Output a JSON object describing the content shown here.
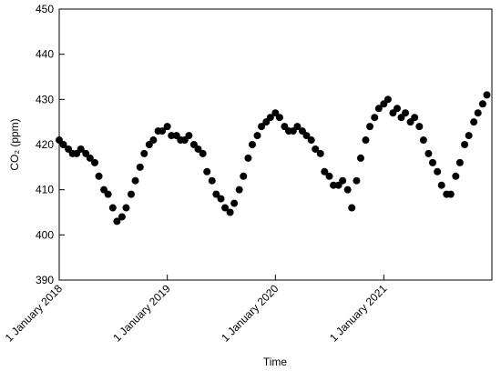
{
  "chart_data": {
    "type": "scatter",
    "x_label": "Time",
    "y_label": "CO₂ (ppm)",
    "xlim": [
      "2018-01-01",
      "2022-01-01"
    ],
    "xticks": [
      {
        "value": "2018-01-01",
        "label": "1 January 2018"
      },
      {
        "value": "2019-01-01",
        "label": "1 January 2019"
      },
      {
        "value": "2020-01-01",
        "label": "1 January 2020"
      },
      {
        "value": "2021-01-01",
        "label": "1 January 2021"
      }
    ],
    "ylim": [
      390,
      450
    ],
    "yticks": [
      390,
      400,
      410,
      420,
      430,
      440,
      450
    ],
    "color": "#000000",
    "x": [
      "2018-01-01",
      "2018-01-15",
      "2018-02-01",
      "2018-02-15",
      "2018-03-01",
      "2018-03-15",
      "2018-04-01",
      "2018-04-15",
      "2018-05-01",
      "2018-05-15",
      "2018-06-01",
      "2018-06-15",
      "2018-07-01",
      "2018-07-15",
      "2018-08-01",
      "2018-08-15",
      "2018-09-01",
      "2018-09-15",
      "2018-10-01",
      "2018-10-15",
      "2018-11-01",
      "2018-11-15",
      "2018-12-01",
      "2018-12-15",
      "2019-01-01",
      "2019-01-15",
      "2019-02-01",
      "2019-02-15",
      "2019-03-01",
      "2019-03-15",
      "2019-04-01",
      "2019-04-15",
      "2019-05-01",
      "2019-05-15",
      "2019-06-01",
      "2019-06-15",
      "2019-07-01",
      "2019-07-15",
      "2019-08-01",
      "2019-08-15",
      "2019-09-01",
      "2019-09-15",
      "2019-10-01",
      "2019-10-15",
      "2019-11-01",
      "2019-11-15",
      "2019-12-01",
      "2019-12-15",
      "2020-01-01",
      "2020-01-15",
      "2020-02-01",
      "2020-02-15",
      "2020-03-01",
      "2020-03-15",
      "2020-04-01",
      "2020-04-15",
      "2020-05-01",
      "2020-05-15",
      "2020-06-01",
      "2020-06-15",
      "2020-07-01",
      "2020-07-15",
      "2020-08-01",
      "2020-08-15",
      "2020-09-01",
      "2020-09-15",
      "2020-10-01",
      "2020-10-15",
      "2020-11-01",
      "2020-11-15",
      "2020-12-01",
      "2020-12-15",
      "2021-01-01",
      "2021-01-15",
      "2021-02-01",
      "2021-02-15",
      "2021-03-01",
      "2021-03-15",
      "2021-04-01",
      "2021-04-15",
      "2021-05-01",
      "2021-05-15",
      "2021-06-01",
      "2021-06-15",
      "2021-07-01",
      "2021-07-15",
      "2021-08-01",
      "2021-08-15",
      "2021-09-01",
      "2021-09-15",
      "2021-10-01",
      "2021-10-15",
      "2021-11-01",
      "2021-11-15",
      "2021-12-01",
      "2021-12-15"
    ],
    "values": [
      421,
      420,
      419,
      418,
      418,
      419,
      418,
      417,
      416,
      413,
      410,
      409,
      406,
      403,
      404,
      406,
      409,
      412,
      415,
      418,
      420,
      421,
      423,
      423,
      424,
      422,
      422,
      421,
      421,
      422,
      420,
      419,
      418,
      414,
      412,
      409,
      408,
      406,
      405,
      407,
      410,
      413,
      417,
      420,
      422,
      424,
      425,
      426,
      427,
      426,
      424,
      423,
      423,
      424,
      423,
      422,
      421,
      419,
      418,
      414,
      413,
      411,
      411,
      412,
      410,
      406,
      412,
      417,
      421,
      424,
      426,
      428,
      429,
      430,
      427,
      428,
      426,
      427,
      425,
      426,
      424,
      421,
      418,
      416,
      414,
      411,
      409,
      409,
      413,
      416,
      420,
      422,
      425,
      427,
      429,
      431
    ]
  }
}
